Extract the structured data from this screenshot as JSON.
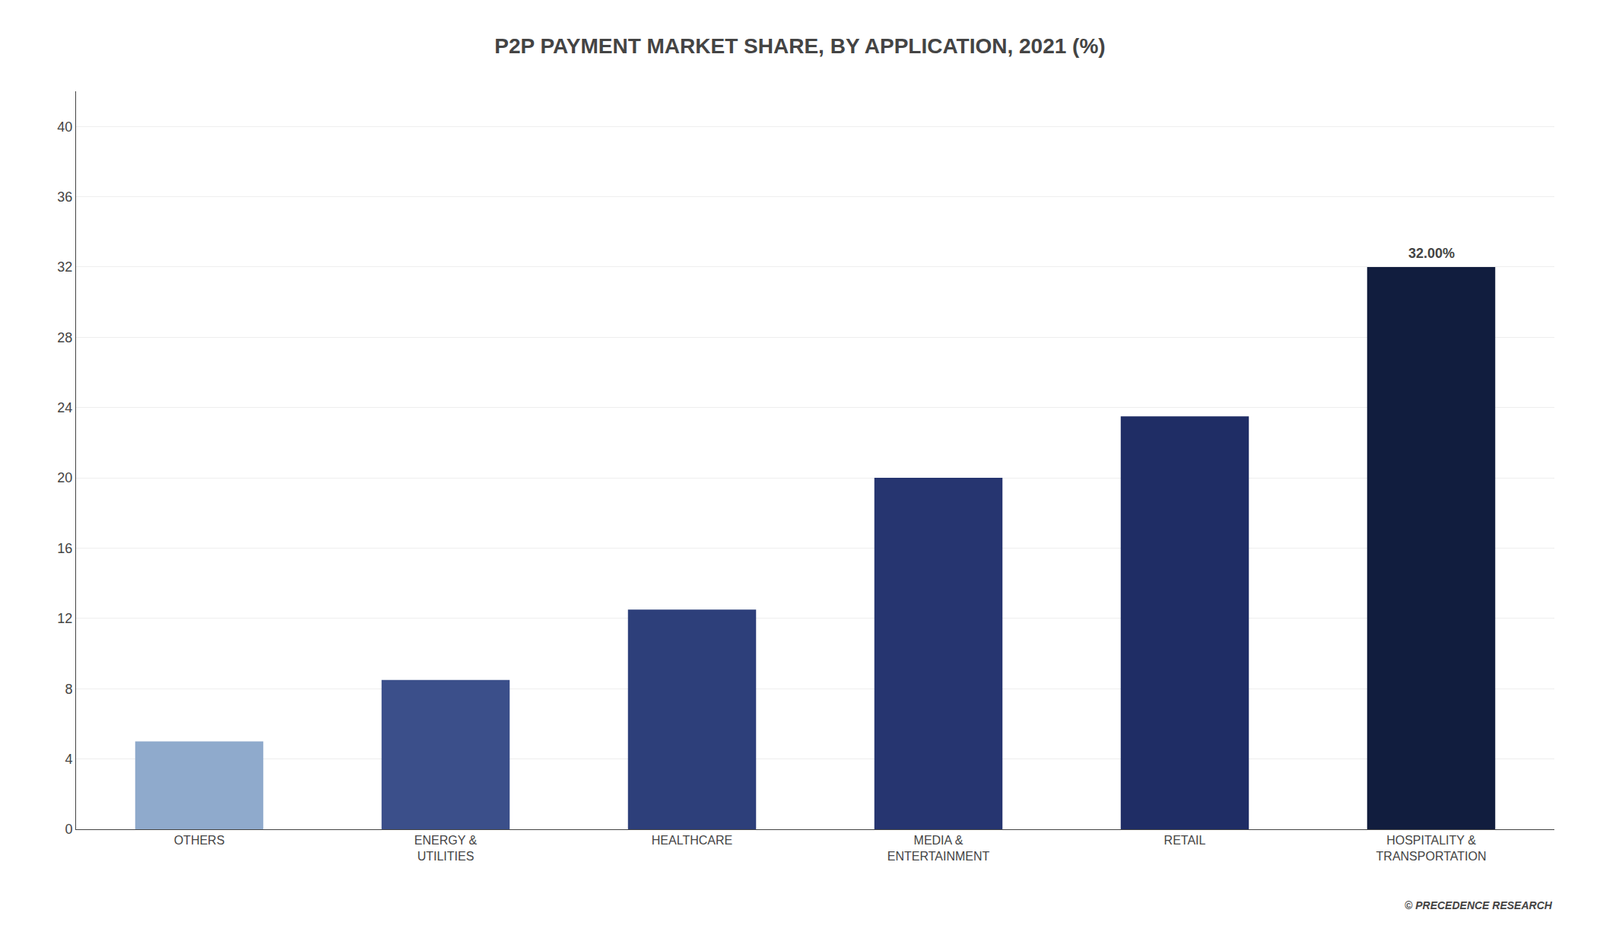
{
  "chart_data": {
    "type": "bar",
    "title": "P2P PAYMENT MARKET SHARE, BY APPLICATION, 2021 (%)",
    "categories": [
      "OTHERS",
      "ENERGY &\nUTILITIES",
      "HEALTHCARE",
      "MEDIA &\nENTERTAINMENT",
      "RETAIL",
      "HOSPITALITY &\nTRANSPORTATION"
    ],
    "values": [
      5.0,
      8.5,
      12.5,
      20.0,
      23.5,
      32.0
    ],
    "colors": [
      "#8faacc",
      "#3b4f8a",
      "#2d3f7a",
      "#263570",
      "#1f2d65",
      "#111d3e"
    ],
    "ylim": [
      0,
      42
    ],
    "yticks": [
      0,
      4,
      8,
      12,
      16,
      20,
      24,
      28,
      32,
      36,
      40
    ],
    "grid": true,
    "annotations": [
      {
        "text": "32.00%",
        "x": "HOSPITALITY &\nTRANSPORTATION",
        "y": 32.0
      },
      {
        "text": "© PRECEDENCE RESEARCH"
      }
    ]
  }
}
